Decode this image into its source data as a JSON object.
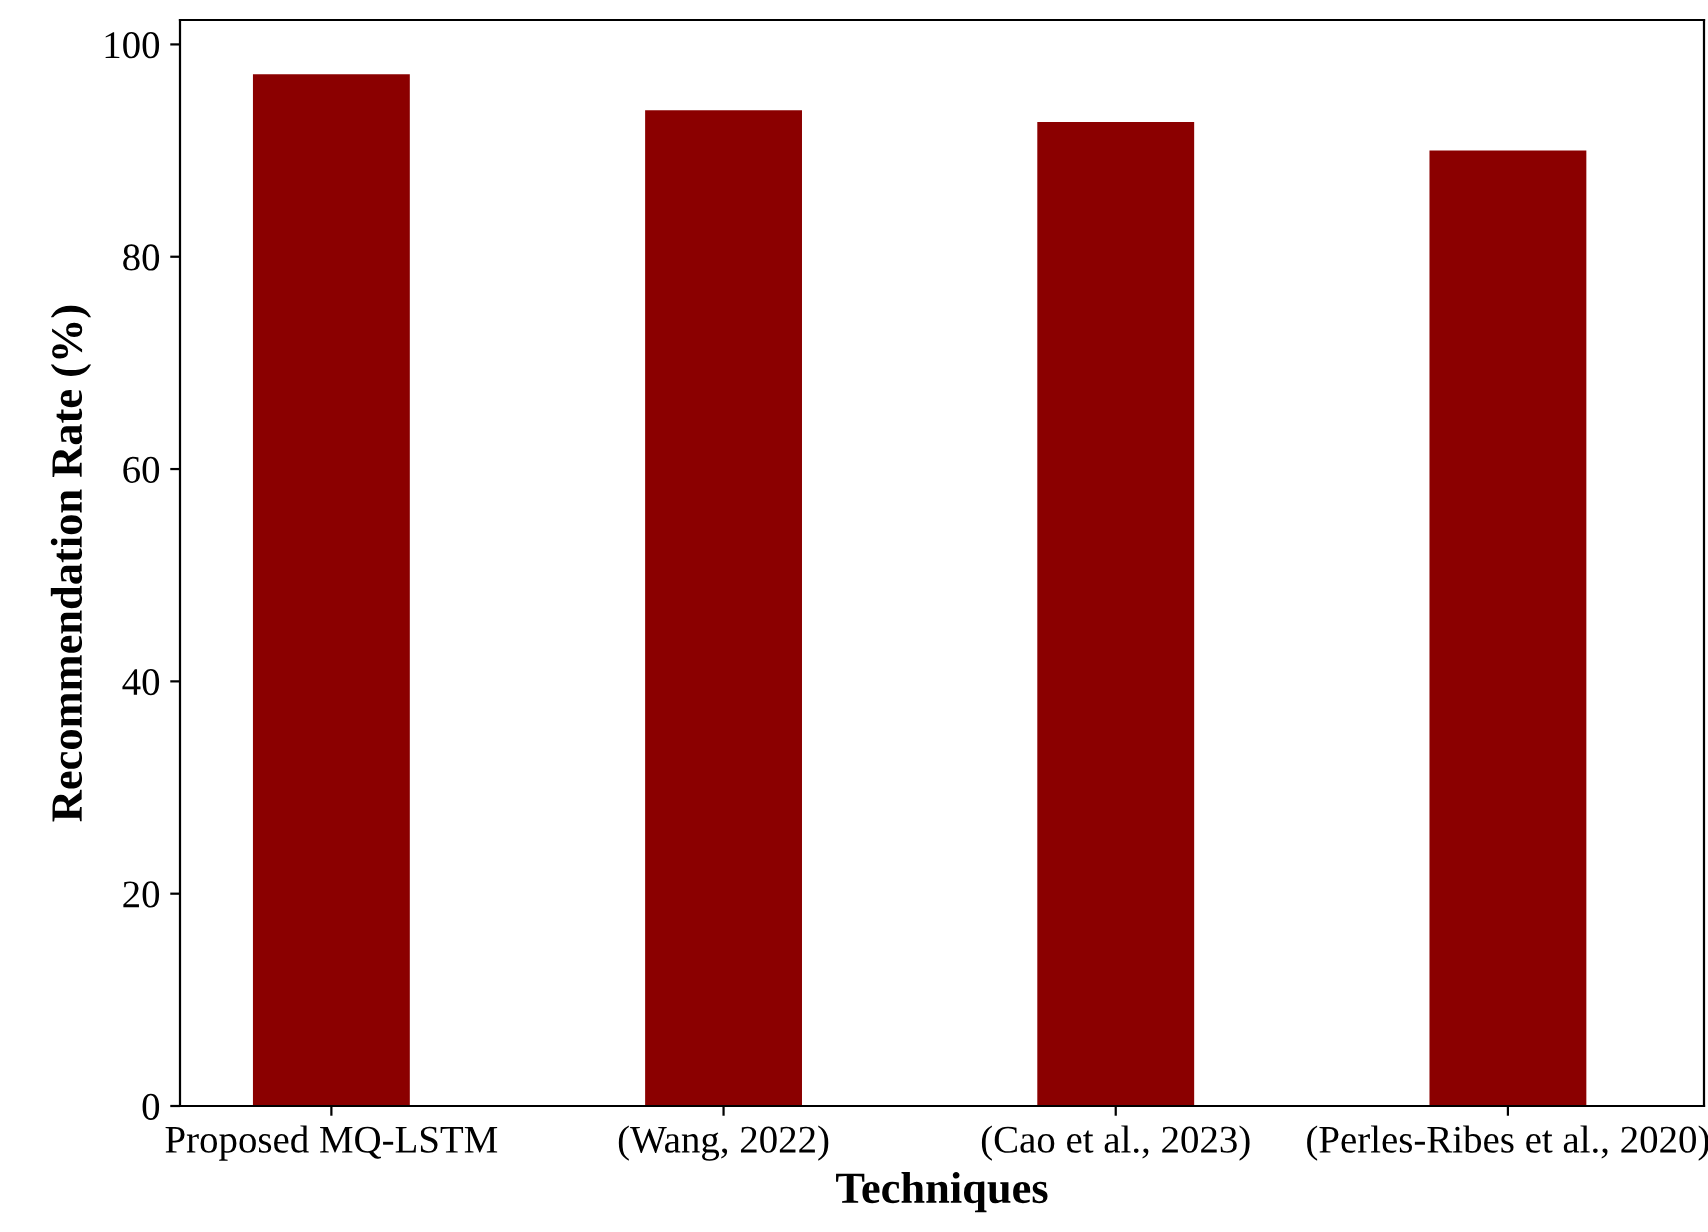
{
  "chart_data": {
    "type": "bar",
    "xlabel": "Techniques",
    "ylabel": "Recommendation Rate (%)",
    "categories": [
      "Proposed MQ-LSTM",
      "(Wang, 2022)",
      "(Cao et al., 2023)",
      "(Perles-Ribes et al., 2020)"
    ],
    "values": [
      97.2,
      93.8,
      92.7,
      90.0
    ],
    "color": "#8b0000",
    "ylim": [
      0,
      102.3
    ],
    "yticks": [
      0,
      20,
      40,
      60,
      80,
      100
    ],
    "grid": false
  }
}
